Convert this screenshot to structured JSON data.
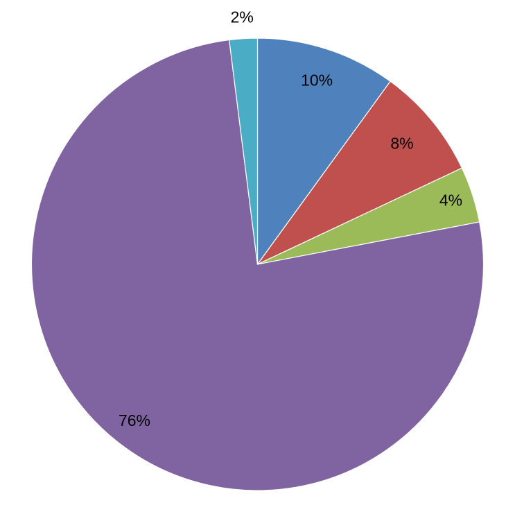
{
  "chart_data": {
    "type": "pie",
    "slices": [
      {
        "value": 10,
        "label": "10%",
        "color": "#4F81BD"
      },
      {
        "value": 8,
        "label": "8%",
        "color": "#C0504D"
      },
      {
        "value": 4,
        "label": "4%",
        "color": "#9BBB59"
      },
      {
        "value": 76,
        "label": "76%",
        "color": "#8064A2"
      },
      {
        "value": 2,
        "label": "2%",
        "color": "#4BACC6"
      }
    ],
    "start_angle": "12 o'clock",
    "direction": "clockwise",
    "legend": "none"
  }
}
